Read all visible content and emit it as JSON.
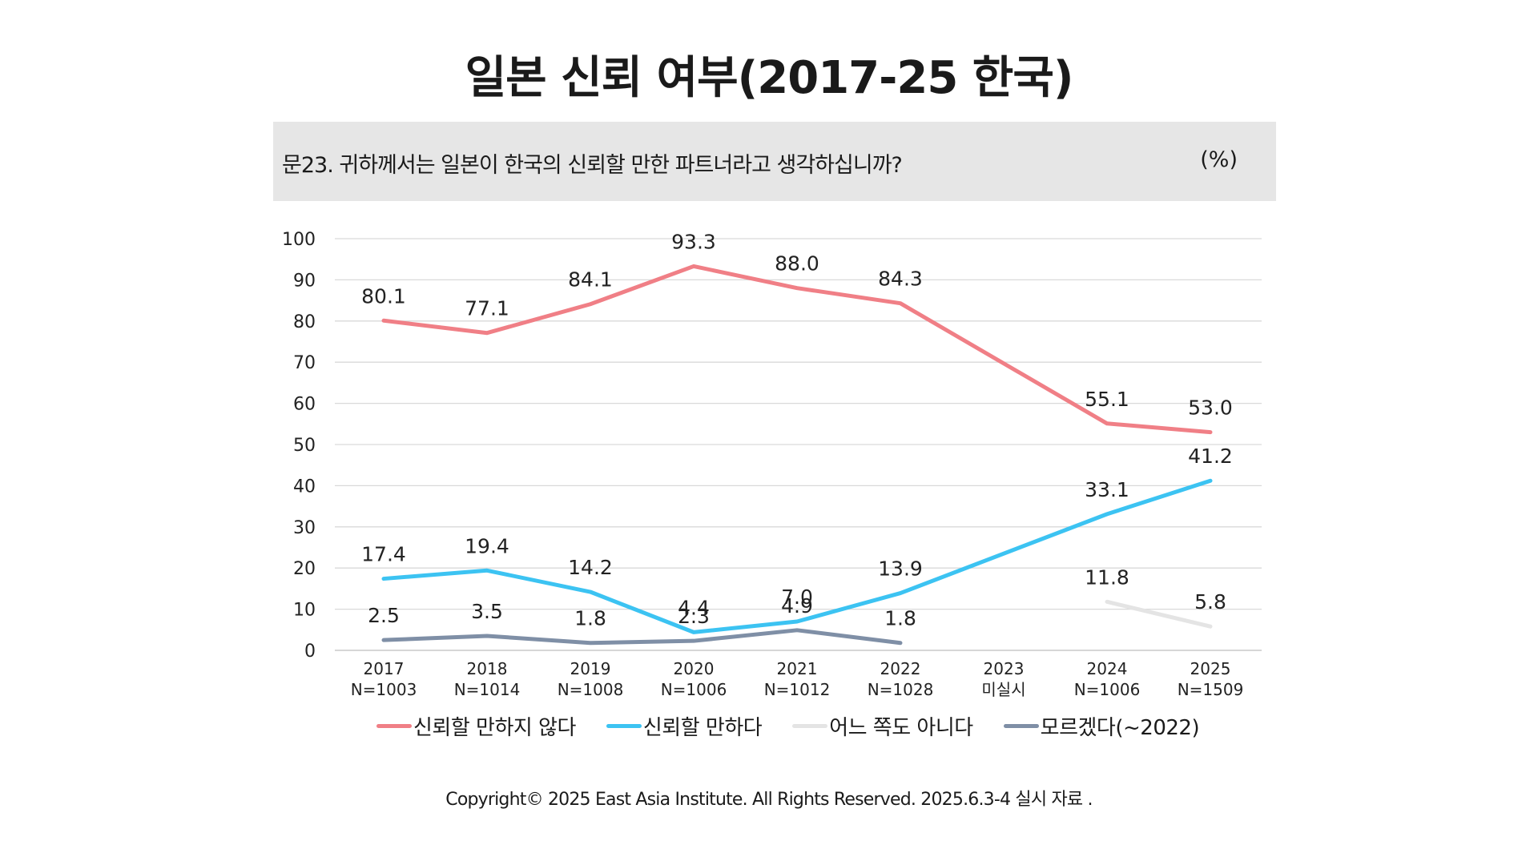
{
  "title": "일본 신뢰 여부(2017-25 한국)",
  "question": "문23. 귀하께서는 일본이 한국의 신뢰할 만한 파트너라고 생각하십니까?",
  "unit": "(%)",
  "footer": "Copyright© 2025 East Asia Institute. All Rights Reserved. 2025.6.3-4 실시 자료 .",
  "chart_data": {
    "type": "line",
    "categories": [
      "2017",
      "2018",
      "2019",
      "2020",
      "2021",
      "2022",
      "2023",
      "2024",
      "2025"
    ],
    "category_sublabels": [
      "N=1003",
      "N=1014",
      "N=1008",
      "N=1006",
      "N=1012",
      "N=1028",
      "미실시",
      "N=1006",
      "N=1509"
    ],
    "ylim": [
      0,
      100
    ],
    "yticks": [
      0,
      10,
      20,
      30,
      40,
      50,
      60,
      70,
      80,
      90,
      100
    ],
    "grid": true,
    "legend_position": "bottom",
    "series": [
      {
        "name": "신뢰할 만하지 않다",
        "color": "#f07f86",
        "values": [
          80.1,
          77.1,
          84.1,
          93.3,
          88.0,
          84.3,
          null,
          55.1,
          53.0
        ],
        "labels": [
          "80.1",
          "77.1",
          "84.1",
          "93.3",
          "88.0",
          "84.3",
          null,
          "55.1",
          "53.0"
        ]
      },
      {
        "name": "신뢰할 만하다",
        "color": "#3cc3f2",
        "values": [
          17.4,
          19.4,
          14.2,
          4.4,
          7.0,
          13.9,
          null,
          33.1,
          41.2
        ],
        "labels": [
          "17.4",
          "19.4",
          "14.2",
          "4.4",
          "7.0",
          "13.9",
          null,
          "33.1",
          "41.2"
        ]
      },
      {
        "name": "어느 쪽도 아니다",
        "color": "#e4e4e4",
        "values": [
          null,
          null,
          null,
          null,
          null,
          null,
          null,
          11.8,
          5.8
        ],
        "labels": [
          null,
          null,
          null,
          null,
          null,
          null,
          null,
          "11.8",
          "5.8"
        ]
      },
      {
        "name": "모르겠다(~2022)",
        "color": "#7f8fa6",
        "values": [
          2.5,
          3.5,
          1.8,
          2.3,
          4.9,
          1.8,
          null,
          null,
          null
        ],
        "labels": [
          "2.5",
          "3.5",
          "1.8",
          "2.3",
          "4.9",
          "1.8",
          null,
          null,
          null
        ]
      }
    ]
  }
}
